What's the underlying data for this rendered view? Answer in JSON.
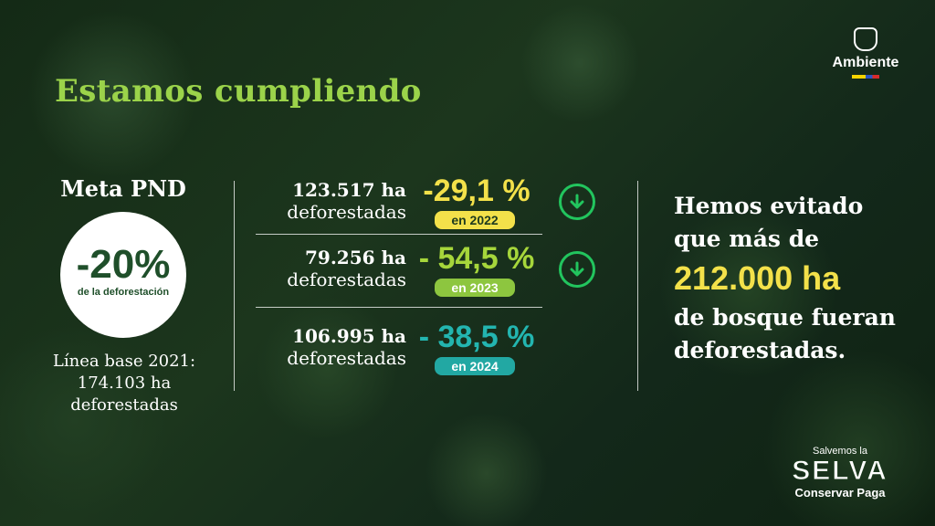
{
  "header": {
    "title": "Estamos cumpliendo"
  },
  "logo": {
    "text": "Ambiente"
  },
  "meta": {
    "title": "Meta PND",
    "value": "-20%",
    "subtitle": "de la deforestación",
    "baseline_lines": [
      "Línea base 2021:",
      "174.103 ha",
      "deforestadas"
    ]
  },
  "rows": [
    {
      "ha": "123.517 ha",
      "label": "deforestadas",
      "pct": "-29,1 %",
      "year": "en 2022",
      "pct_color": "#f3e14a",
      "pill_color": "#f3e14a",
      "arrow": "arrow-down-icon"
    },
    {
      "ha": "79.256 ha",
      "label": "deforestadas",
      "pct": "- 54,5 %",
      "year": "en 2023",
      "pct_color": "#a6d63b",
      "pill_color": "#8dc63f",
      "arrow": "arrow-down-icon"
    },
    {
      "ha": "106.995 ha",
      "label": "deforestadas",
      "pct": "- 38,5 %",
      "year": "en 2024",
      "pct_color": "#23b5b0",
      "pill_color": "#22a8a3"
    }
  ],
  "right": {
    "line1": "Hemos evitado",
    "line2": "que más de",
    "big": "212.000 ha",
    "line3": "de bosque fueran",
    "line4": "deforestadas."
  },
  "badge": {
    "top": "Salvemos la",
    "main": "SELVA",
    "bottom": "Conservar Paga"
  },
  "colors": {
    "title": "#9bd34a",
    "highlight": "#f3e14a",
    "arrow_ring": "#22c55e"
  }
}
